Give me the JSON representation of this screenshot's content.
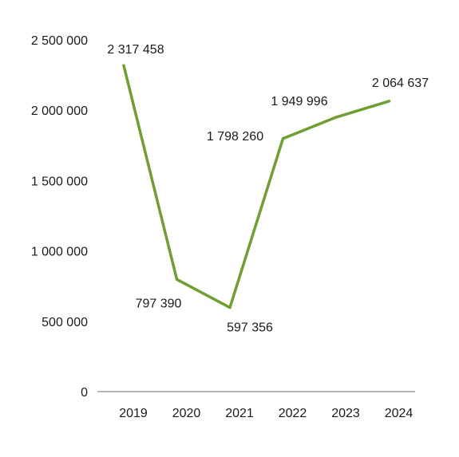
{
  "chart_data": {
    "type": "line",
    "title": "",
    "xlabel": "",
    "ylabel": "",
    "categories": [
      "2019",
      "2020",
      "2021",
      "2022",
      "2023",
      "2024"
    ],
    "series": [
      {
        "values": [
          2317458,
          797390,
          597356,
          1798260,
          1949996,
          2064637
        ],
        "labels": [
          "2 317 458",
          "797 390",
          "597 356",
          "1 798 260",
          "1 949 996",
          "2 064 637"
        ],
        "color": "#6f9e33"
      }
    ],
    "ylim": [
      0,
      2500000
    ],
    "yticks": [
      {
        "value": 0,
        "label": "0"
      },
      {
        "value": 500000,
        "label": "500 000"
      },
      {
        "value": 1000000,
        "label": "1 000 000"
      },
      {
        "value": 1500000,
        "label": "1 500 000"
      },
      {
        "value": 2000000,
        "label": "2 000 000"
      },
      {
        "value": 2500000,
        "label": "2 500 000"
      }
    ],
    "grid": false,
    "legend": "none"
  }
}
